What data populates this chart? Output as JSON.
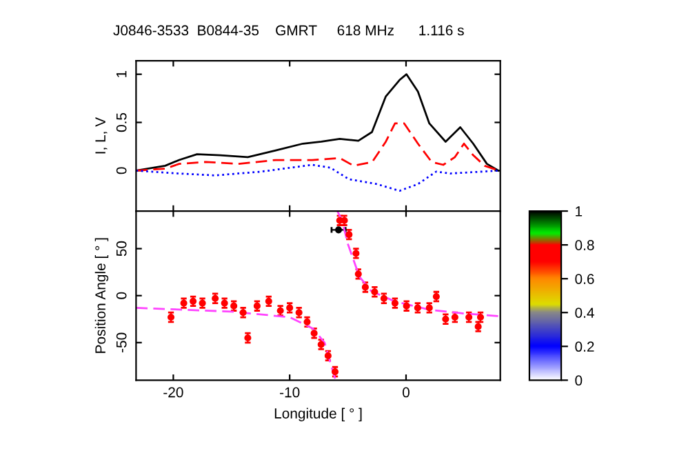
{
  "chart_data": [
    {
      "type": "line",
      "title": "J0846-3533  B0844-35    GMRT     618 MHz      1.116 s",
      "ylabel": "I, L, V",
      "tick_labels": "y",
      "xlim": [
        -23.2,
        8.1
      ],
      "ylim": [
        -0.42,
        1.14
      ],
      "xticks": [
        -20,
        -10,
        0
      ],
      "yticks": [
        0,
        0.5,
        1
      ],
      "grid": false,
      "legend": false,
      "series": [
        {
          "color": "#000000",
          "line_style": "solid",
          "x": [
            -23.2,
            -20.7,
            -19.5,
            -17.96,
            -15.98,
            -13.6,
            -11.2,
            -8.86,
            -7.28,
            -5.7,
            -4.1,
            -2.93,
            -1.74,
            -0.56,
            0.04,
            1.02,
            2.0,
            3.4,
            4.66,
            5.77,
            6.95,
            7.95
          ],
          "values": [
            0.0,
            0.05,
            0.11,
            0.17,
            0.16,
            0.14,
            0.21,
            0.28,
            0.3,
            0.33,
            0.31,
            0.4,
            0.77,
            0.94,
            1.0,
            0.82,
            0.49,
            0.3,
            0.45,
            0.28,
            0.07,
            0.0
          ]
        },
        {
          "color": "#ff0000",
          "line_style": "dashed",
          "x": [
            -23.2,
            -20.7,
            -19.5,
            -17.2,
            -14.4,
            -11.2,
            -8.07,
            -5.7,
            -4.5,
            -2.9,
            -1.74,
            -0.95,
            -0.16,
            1.02,
            2.2,
            3.2,
            4.2,
            4.98,
            5.77,
            6.75,
            8.0
          ],
          "values": [
            0.0,
            0.02,
            0.07,
            0.09,
            0.07,
            0.11,
            0.11,
            0.13,
            0.05,
            0.09,
            0.3,
            0.49,
            0.49,
            0.28,
            0.09,
            0.06,
            0.14,
            0.28,
            0.16,
            0.05,
            0.0
          ]
        },
        {
          "color": "#0000ff",
          "line_style": "dotted",
          "x": [
            -23.2,
            -19.5,
            -16.4,
            -12.4,
            -8.07,
            -6.5,
            -4.9,
            -2.5,
            -0.56,
            1.02,
            2.6,
            3.8,
            6.6,
            8.0
          ],
          "values": [
            0.0,
            -0.03,
            -0.05,
            -0.01,
            0.06,
            0.03,
            -0.09,
            -0.14,
            -0.21,
            -0.14,
            -0.01,
            -0.03,
            -0.01,
            0.0
          ]
        }
      ]
    },
    {
      "type": "scatter",
      "xlabel": "Longitude [ ° ]",
      "ylabel": "Position Angle [ ° ]",
      "xlim": [
        -23.2,
        8.1
      ],
      "ylim": [
        -90,
        90
      ],
      "xticks": [
        -20,
        -10,
        0
      ],
      "yticks": [
        -50,
        0,
        50
      ],
      "clim": [
        0,
        1
      ],
      "cticks": [
        0,
        0.2,
        0.4,
        0.6,
        0.8,
        1
      ],
      "grid": false,
      "legend": false,
      "marker": "circle",
      "series": [
        {
          "x": [
            -20.2,
            -19.1,
            -18.3,
            -17.5,
            -16.4,
            -15.6,
            -14.8,
            -14.0,
            -13.6,
            -12.8,
            -11.8,
            -10.8,
            -10.0,
            -9.2,
            -8.5,
            -7.9,
            -7.3,
            -6.7,
            -6.1,
            -5.7,
            -5.3,
            -4.9,
            -4.3,
            -4.1,
            -3.5,
            -2.7,
            -1.9,
            -0.95,
            0.04,
            1.0,
            2.0,
            2.6,
            3.4,
            4.2,
            5.4,
            6.2,
            6.4
          ],
          "values": [
            -23,
            -8,
            -6,
            -8,
            -3,
            -8,
            -11,
            -18,
            -45,
            -11,
            -6,
            -16,
            -13,
            -18,
            -28,
            -40,
            -52,
            -64,
            -81,
            80,
            80,
            65,
            45,
            23,
            9,
            4,
            -3,
            -8,
            -11,
            -13,
            -13,
            -1,
            -25,
            -23,
            -23,
            -33,
            -23
          ],
          "errors": [
            5,
            5,
            5,
            5,
            5,
            5,
            5,
            5,
            5,
            5,
            5,
            5,
            5,
            5,
            5,
            5,
            5,
            5,
            5,
            5,
            5,
            5,
            5,
            5,
            5,
            5,
            5,
            5,
            5,
            5,
            5,
            5,
            5,
            5,
            5,
            5,
            5
          ],
          "color": "#ff0000"
        },
        {
          "x": [
            -5.8
          ],
          "values": [
            70
          ],
          "xerrors": [
            0.6
          ],
          "color": "#000000"
        },
        {
          "type": "line",
          "color": "#ff44ff",
          "line_style": "dashed",
          "marker": "none",
          "x": [
            -23.2,
            -15,
            -10,
            -8,
            -7,
            -6.3,
            -6.05,
            -6.0,
            -5.9,
            -5.5,
            -5,
            -4,
            -3,
            -1,
            2,
            5,
            8.1
          ],
          "values": [
            -13,
            -17,
            -23,
            -35,
            -50,
            -80,
            -90,
            null,
            90,
            80,
            55,
            20,
            5,
            -6,
            -15,
            -19,
            -22
          ]
        }
      ]
    }
  ]
}
